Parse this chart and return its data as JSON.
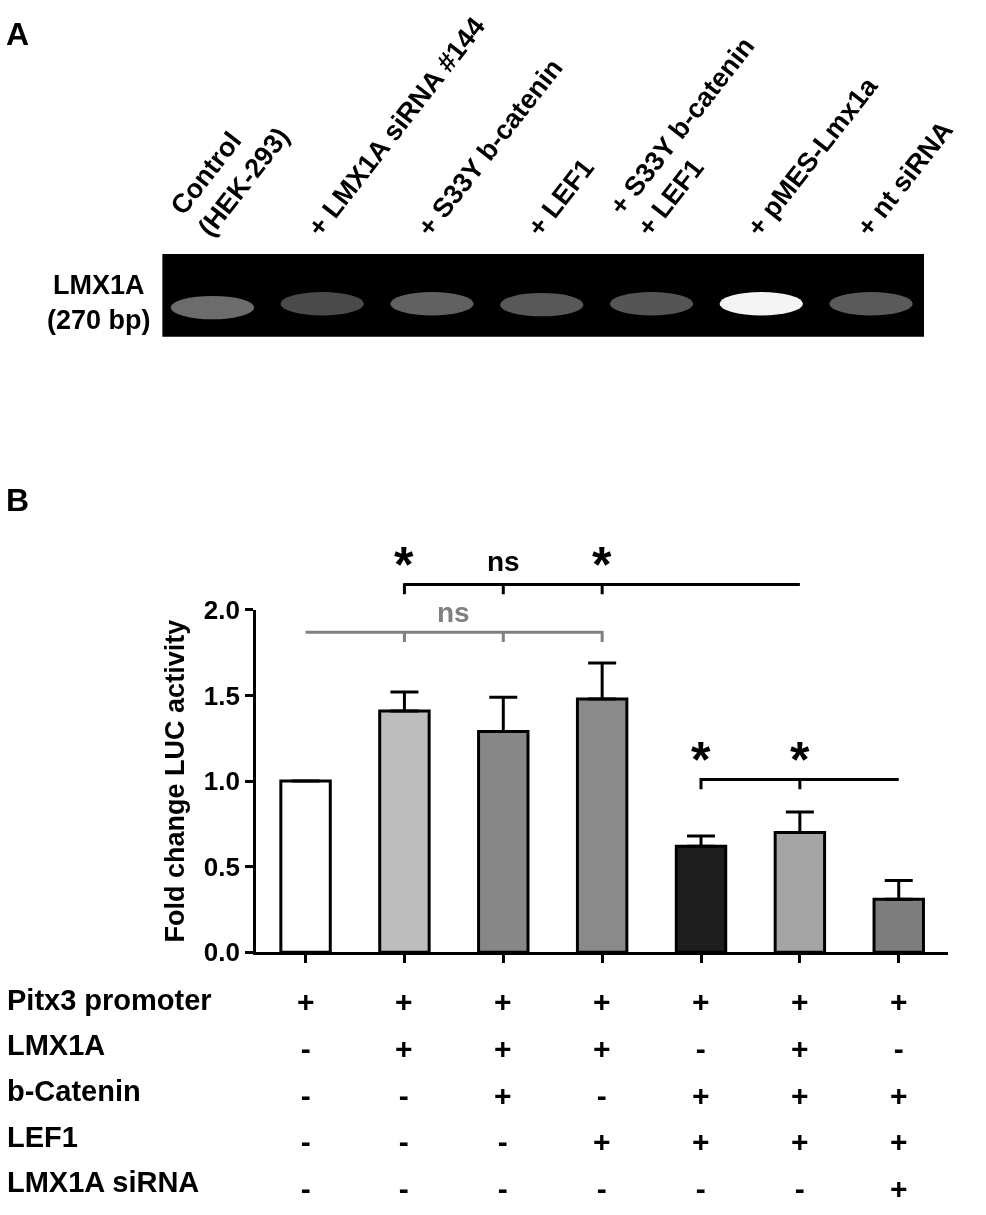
{
  "chart_data": [
    {
      "type": "other",
      "title": "A",
      "categories": [
        "Control\n(HEK-293)",
        "+ LMX1A siRNA #144",
        "+ S33Y b-catenin",
        "+ LEF1",
        "+ S33Y b-catenin\n+ LEF1",
        "+ pMES-Lmx1a",
        "+ nt siRNA"
      ],
      "annotations": [
        "LMX1A\n(270 bp)"
      ]
    },
    {
      "type": "bar",
      "title": "B",
      "ylabel": "Fold change LUC activity",
      "categories": [
        "+\n-\n-\n-\n-",
        "+\n+\n-\n-\n-",
        "+\n+\n+\n-\n-",
        "+\n+\n-\n+\n-",
        "+\n-\n+\n+\n-",
        "+\n+\n+\n+\n-",
        "+\n-\n+\n+\n+"
      ],
      "values": [
        1.0,
        1.41,
        1.29,
        1.48,
        0.62,
        0.7,
        0.31
      ],
      "colors": [
        "#ffffff",
        "#bdbdbd",
        "#878787",
        "#8a8a8a",
        "#1e1e1e",
        "#a5a5a5",
        "#7d7d7d"
      ],
      "errors": [
        null,
        [
          1.41,
          1.52
        ],
        [
          1.29,
          1.49
        ],
        [
          1.48,
          1.69
        ],
        [
          0.62,
          0.68
        ],
        [
          0.7,
          0.82
        ],
        [
          0.31,
          0.42
        ]
      ],
      "ylim": [
        0,
        2.0
      ],
      "yticks": [
        {
          "value": 0,
          "label": "0.0"
        },
        {
          "value": 0.5,
          "label": "0.5"
        },
        {
          "value": 1.0,
          "label": "1.0"
        },
        {
          "value": 1.5,
          "label": "1.5"
        },
        {
          "value": 2.0,
          "label": "2.0"
        }
      ],
      "annotations": [
        "*",
        "ns",
        "*",
        "ns",
        "*",
        "*",
        "Pitx3 promoter",
        "LMX1A",
        "b-Catenin",
        "LEF1",
        "LMX1A siRNA"
      ]
    }
  ]
}
